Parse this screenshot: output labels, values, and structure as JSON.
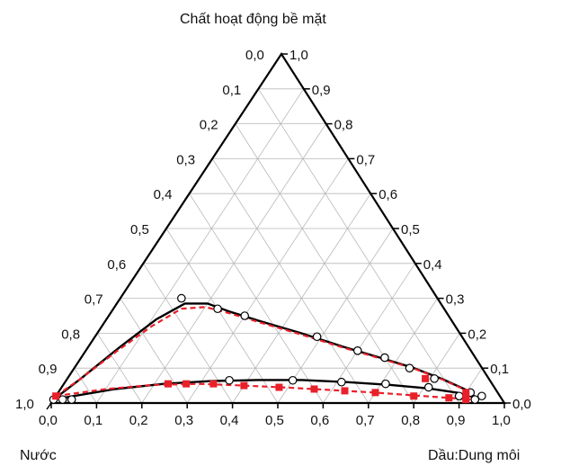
{
  "chart_data": {
    "type": "scatter",
    "subtype": "ternary",
    "vertex_labels": {
      "top": "Chất hoạt động bề mặt",
      "bottom_left": "Nước",
      "bottom_right": "Dầu:Dung môi"
    },
    "tick_labels": [
      "0,0",
      "0,1",
      "0,2",
      "0,3",
      "0,4",
      "0,5",
      "0,6",
      "0,7",
      "0,8",
      "0,9",
      "1,0"
    ],
    "grid": true,
    "components": [
      "Nước",
      "Dầu:Dung môi",
      "Chất hoạt động bề mặt"
    ],
    "series": [
      {
        "marker": "open-circle",
        "line": "solid",
        "color": "#000000",
        "points": [
          {
            "oil": 0.0,
            "surfactant": 0.01
          },
          {
            "oil": 0.02,
            "surfactant": 0.01
          },
          {
            "oil": 0.04,
            "surfactant": 0.01
          },
          {
            "oil": 0.36,
            "surfactant": 0.065
          },
          {
            "oil": 0.5,
            "surfactant": 0.065
          },
          {
            "oil": 0.61,
            "surfactant": 0.06
          },
          {
            "oil": 0.71,
            "surfactant": 0.055
          },
          {
            "oil": 0.81,
            "surfactant": 0.045
          },
          {
            "oil": 0.89,
            "surfactant": 0.02
          },
          {
            "oil": 0.93,
            "surfactant": 0.01
          },
          {
            "oil": 0.94,
            "surfactant": 0.02
          },
          {
            "oil": 0.135,
            "surfactant": 0.3
          },
          {
            "oil": 0.23,
            "surfactant": 0.27
          },
          {
            "oil": 0.3,
            "surfactant": 0.25
          },
          {
            "oil": 0.49,
            "surfactant": 0.19
          },
          {
            "oil": 0.6,
            "surfactant": 0.15
          },
          {
            "oil": 0.67,
            "surfactant": 0.13
          },
          {
            "oil": 0.74,
            "surfactant": 0.1
          },
          {
            "oil": 0.81,
            "surfactant": 0.07
          },
          {
            "oil": 0.91,
            "surfactant": 0.03
          }
        ]
      },
      {
        "marker": "filled-square",
        "line": "dashed",
        "color": "#e8202a",
        "points": [
          {
            "oil": 0.0,
            "surfactant": 0.02
          },
          {
            "oil": 0.23,
            "surfactant": 0.055
          },
          {
            "oil": 0.27,
            "surfactant": 0.055
          },
          {
            "oil": 0.33,
            "surfactant": 0.055
          },
          {
            "oil": 0.4,
            "surfactant": 0.05
          },
          {
            "oil": 0.48,
            "surfactant": 0.045
          },
          {
            "oil": 0.56,
            "surfactant": 0.04
          },
          {
            "oil": 0.63,
            "surfactant": 0.035
          },
          {
            "oil": 0.7,
            "surfactant": 0.03
          },
          {
            "oil": 0.79,
            "surfactant": 0.02
          },
          {
            "oil": 0.87,
            "surfactant": 0.015
          },
          {
            "oil": 0.91,
            "surfactant": 0.01
          },
          {
            "oil": 0.79,
            "surfactant": 0.07
          },
          {
            "oil": 0.9,
            "surfactant": 0.03
          }
        ]
      }
    ],
    "boundary_curves": [
      {
        "style": "solid",
        "color": "#000000",
        "points": [
          [
            0.0,
            0.01
          ],
          [
            0.04,
            0.02
          ],
          [
            0.12,
            0.04
          ],
          [
            0.22,
            0.055
          ],
          [
            0.32,
            0.063
          ],
          [
            0.42,
            0.066
          ],
          [
            0.52,
            0.066
          ],
          [
            0.62,
            0.06
          ],
          [
            0.72,
            0.052
          ],
          [
            0.81,
            0.042
          ],
          [
            0.88,
            0.03
          ],
          [
            0.93,
            0.015
          ]
        ]
      },
      {
        "style": "solid",
        "color": "#000000",
        "points": [
          [
            0.0,
            0.01
          ],
          [
            0.03,
            0.07
          ],
          [
            0.07,
            0.16
          ],
          [
            0.11,
            0.24
          ],
          [
            0.15,
            0.285
          ],
          [
            0.2,
            0.285
          ],
          [
            0.26,
            0.262
          ],
          [
            0.34,
            0.235
          ],
          [
            0.45,
            0.2
          ],
          [
            0.56,
            0.162
          ],
          [
            0.66,
            0.13
          ],
          [
            0.75,
            0.1
          ],
          [
            0.83,
            0.068
          ],
          [
            0.9,
            0.036
          ],
          [
            0.93,
            0.015
          ]
        ]
      },
      {
        "style": "dashed",
        "color": "#e8202a",
        "points": [
          [
            0.0,
            0.02
          ],
          [
            0.1,
            0.04
          ],
          [
            0.2,
            0.052
          ],
          [
            0.3,
            0.055
          ],
          [
            0.4,
            0.05
          ],
          [
            0.5,
            0.044
          ],
          [
            0.6,
            0.037
          ],
          [
            0.7,
            0.03
          ],
          [
            0.8,
            0.021
          ],
          [
            0.88,
            0.014
          ],
          [
            0.92,
            0.01
          ]
        ]
      },
      {
        "style": "dashed",
        "color": "#e8202a",
        "points": [
          [
            0.0,
            0.02
          ],
          [
            0.03,
            0.07
          ],
          [
            0.07,
            0.15
          ],
          [
            0.11,
            0.22
          ],
          [
            0.15,
            0.27
          ],
          [
            0.2,
            0.275
          ],
          [
            0.26,
            0.258
          ],
          [
            0.34,
            0.232
          ],
          [
            0.45,
            0.197
          ],
          [
            0.56,
            0.16
          ],
          [
            0.66,
            0.128
          ],
          [
            0.75,
            0.099
          ],
          [
            0.83,
            0.067
          ],
          [
            0.9,
            0.035
          ],
          [
            0.92,
            0.015
          ]
        ]
      }
    ]
  }
}
